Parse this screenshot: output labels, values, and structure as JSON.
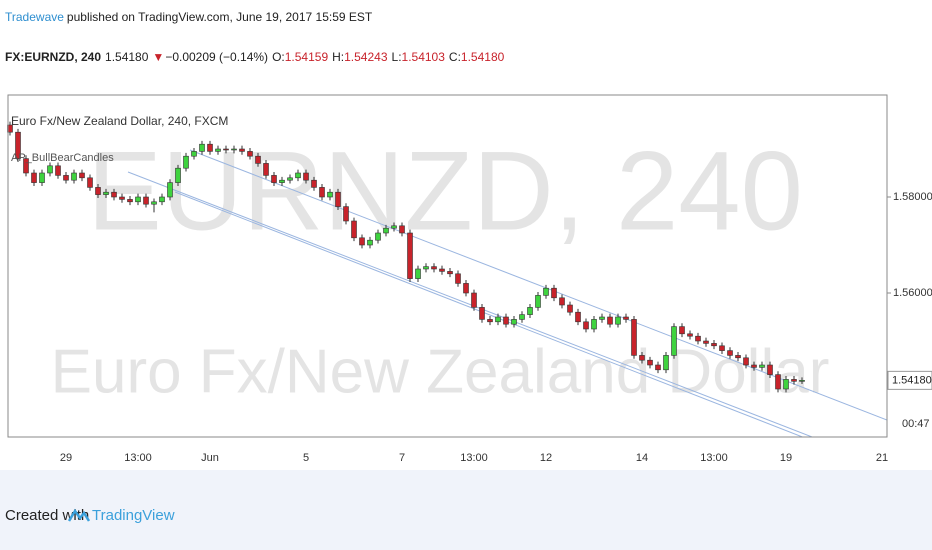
{
  "header": {
    "publisher": "Tradewave",
    "published_text": "published on TradingView.com, June 19, 2017 15:59 EST",
    "symbol": "FX:EURNZD, 240",
    "last": "1.54180",
    "arrow": "▼",
    "change": "−0.00209 (−0.14%)",
    "open_label": "O:",
    "open": "1.54159",
    "high_label": "H:",
    "high": "1.54243",
    "low_label": "L:",
    "low": "1.54103",
    "close_label": "C:",
    "close": "1.54180"
  },
  "chart_data": {
    "type": "candlestick",
    "title": "Euro Fx/New Zealand Dollar, 240, FXCM",
    "indicator": "AP_BullBearCandles",
    "watermark_symbol": "EURNZD, 240",
    "watermark_name": "Euro Fx/New Zealand Dollar",
    "last_price_label": "1.54180",
    "countdown": "00:47",
    "up_color": "#3fd33f",
    "down_color": "#c8232b",
    "ylim": [
      1.53,
      1.60125
    ],
    "yticks": [
      {
        "value": 1.58,
        "label": "1.58000"
      },
      {
        "value": 1.56,
        "label": "1.56000"
      }
    ],
    "categories": [
      null,
      null,
      null,
      null,
      null,
      null,
      null,
      "29",
      null,
      null,
      null,
      null,
      null,
      null,
      null,
      null,
      "13:00",
      null,
      null,
      null,
      null,
      null,
      null,
      null,
      null,
      "Jun",
      null,
      null,
      null,
      null,
      null,
      null,
      null,
      null,
      null,
      null,
      null,
      "5",
      null,
      null,
      null,
      null,
      null,
      null,
      null,
      null,
      null,
      null,
      null,
      "7",
      null,
      null,
      null,
      null,
      null,
      null,
      null,
      null,
      "13:00",
      null,
      null,
      null,
      null,
      null,
      null,
      null,
      null,
      "12",
      null,
      null,
      null,
      null,
      null,
      null,
      null,
      null,
      null,
      null,
      null,
      "14",
      null,
      null,
      null,
      null,
      null,
      null,
      null,
      null,
      "13:00",
      null,
      null,
      null,
      null,
      null,
      null,
      null,
      null,
      "19",
      null,
      null,
      null,
      null,
      null,
      null,
      null,
      null,
      null,
      null,
      null,
      "21"
    ],
    "open": [
      1.595,
      1.5935,
      1.588,
      1.585,
      1.583,
      1.585,
      1.5865,
      1.5845,
      1.5835,
      1.585,
      1.584,
      1.582,
      1.5805,
      1.581,
      1.58,
      1.5795,
      1.579,
      1.58,
      1.5785,
      1.579,
      1.58,
      1.583,
      1.586,
      1.5885,
      1.5895,
      1.591,
      1.5895,
      1.59,
      1.5898,
      1.59,
      1.5895,
      1.5885,
      1.587,
      1.5845,
      1.583,
      1.5835,
      1.584,
      1.585,
      1.5835,
      1.582,
      1.58,
      1.581,
      1.578,
      1.575,
      1.5715,
      1.57,
      1.571,
      1.5725,
      1.5735,
      1.574,
      1.5725,
      1.563,
      1.565,
      1.5655,
      1.565,
      1.5645,
      1.564,
      1.562,
      1.56,
      1.557,
      1.5545,
      1.554,
      1.555,
      1.5535,
      1.5545,
      1.5555,
      1.557,
      1.5595,
      1.561,
      1.559,
      1.5575,
      1.556,
      1.554,
      1.5525,
      1.5545,
      1.555,
      1.5535,
      1.555,
      1.5545,
      1.547,
      1.546,
      1.545,
      1.544,
      1.547,
      1.553,
      1.5515,
      1.551,
      1.55,
      1.5495,
      1.549,
      1.548,
      1.547,
      1.5465,
      1.545,
      1.5445,
      1.545,
      1.543,
      1.54,
      1.542,
      1.54159,
      null,
      null,
      null,
      null,
      null,
      null,
      null,
      null,
      null,
      null
    ],
    "high": [
      1.5957,
      1.5942,
      1.5887,
      1.5857,
      1.5857,
      1.5872,
      1.5872,
      1.5852,
      1.5857,
      1.5857,
      1.5847,
      1.5827,
      1.5817,
      1.5817,
      1.5807,
      1.5802,
      1.5807,
      1.5807,
      1.5797,
      1.5807,
      1.5837,
      1.5867,
      1.5892,
      1.5902,
      1.5917,
      1.5917,
      1.5907,
      1.5907,
      1.5907,
      1.5907,
      1.5902,
      1.5892,
      1.5877,
      1.5852,
      1.5842,
      1.5847,
      1.5857,
      1.5857,
      1.5842,
      1.5827,
      1.5817,
      1.5817,
      1.5787,
      1.5757,
      1.5722,
      1.5717,
      1.5732,
      1.5742,
      1.5747,
      1.5747,
      1.5732,
      1.5657,
      1.5662,
      1.5662,
      1.5657,
      1.5652,
      1.5647,
      1.5627,
      1.5607,
      1.5577,
      1.5552,
      1.5557,
      1.5557,
      1.5552,
      1.5562,
      1.5577,
      1.5602,
      1.5617,
      1.5617,
      1.5597,
      1.5582,
      1.5567,
      1.5547,
      1.5552,
      1.5557,
      1.5557,
      1.5557,
      1.5557,
      1.5552,
      1.5477,
      1.5467,
      1.5457,
      1.5477,
      1.5537,
      1.5537,
      1.5522,
      1.5517,
      1.5507,
      1.5502,
      1.5497,
      1.5487,
      1.5477,
      1.5472,
      1.5457,
      1.5457,
      1.5457,
      1.5437,
      1.5427,
      1.5427,
      1.54243,
      null,
      null,
      null,
      null,
      null,
      null,
      null,
      null,
      null,
      null
    ],
    "low": [
      1.5928,
      1.5873,
      1.5843,
      1.5823,
      1.5823,
      1.5843,
      1.5838,
      1.5828,
      1.5828,
      1.5833,
      1.5813,
      1.5798,
      1.5798,
      1.5793,
      1.5788,
      1.5783,
      1.5783,
      1.5778,
      1.5768,
      1.5783,
      1.5793,
      1.5823,
      1.5853,
      1.5878,
      1.5888,
      1.5888,
      1.5888,
      1.5891,
      1.5891,
      1.5888,
      1.5878,
      1.5863,
      1.5838,
      1.5823,
      1.5823,
      1.5828,
      1.5833,
      1.5828,
      1.5813,
      1.5793,
      1.5793,
      1.5773,
      1.5743,
      1.5708,
      1.5693,
      1.5693,
      1.5703,
      1.5718,
      1.5728,
      1.5718,
      1.5623,
      1.5623,
      1.5643,
      1.5643,
      1.5638,
      1.5633,
      1.5613,
      1.5593,
      1.5563,
      1.5538,
      1.5533,
      1.5533,
      1.5528,
      1.5528,
      1.5538,
      1.5548,
      1.5563,
      1.5588,
      1.5583,
      1.5568,
      1.5553,
      1.5533,
      1.5518,
      1.5518,
      1.5538,
      1.5528,
      1.5528,
      1.5538,
      1.5463,
      1.5453,
      1.5443,
      1.5433,
      1.5433,
      1.5463,
      1.5508,
      1.5503,
      1.5493,
      1.5488,
      1.5483,
      1.5473,
      1.5463,
      1.5458,
      1.5443,
      1.5438,
      1.5438,
      1.5423,
      1.5393,
      1.5393,
      1.5409,
      1.54103,
      null,
      null,
      null,
      null,
      null,
      null,
      null,
      null,
      null,
      null
    ],
    "close": [
      1.5935,
      1.588,
      1.585,
      1.583,
      1.585,
      1.5865,
      1.5845,
      1.5835,
      1.585,
      1.584,
      1.582,
      1.5805,
      1.581,
      1.58,
      1.5795,
      1.579,
      1.58,
      1.5785,
      1.579,
      1.58,
      1.583,
      1.586,
      1.5885,
      1.5895,
      1.591,
      1.5895,
      1.59,
      1.5898,
      1.59,
      1.5895,
      1.5885,
      1.587,
      1.5845,
      1.583,
      1.5835,
      1.584,
      1.585,
      1.5835,
      1.582,
      1.58,
      1.581,
      1.578,
      1.575,
      1.5715,
      1.57,
      1.571,
      1.5725,
      1.5735,
      1.574,
      1.5725,
      1.563,
      1.565,
      1.5655,
      1.565,
      1.5645,
      1.564,
      1.562,
      1.56,
      1.557,
      1.5545,
      1.554,
      1.555,
      1.5535,
      1.5545,
      1.5555,
      1.557,
      1.5595,
      1.561,
      1.559,
      1.5575,
      1.556,
      1.554,
      1.5525,
      1.5545,
      1.555,
      1.5535,
      1.555,
      1.5545,
      1.547,
      1.546,
      1.545,
      1.544,
      1.547,
      1.553,
      1.5515,
      1.551,
      1.55,
      1.5495,
      1.549,
      1.548,
      1.547,
      1.5465,
      1.545,
      1.5445,
      1.545,
      1.543,
      1.54,
      1.542,
      1.5416,
      1.5418,
      null,
      null,
      null,
      null,
      null,
      null,
      null,
      null,
      null,
      null
    ]
  },
  "footer": {
    "created": "Created with",
    "brand": "TradingView"
  }
}
